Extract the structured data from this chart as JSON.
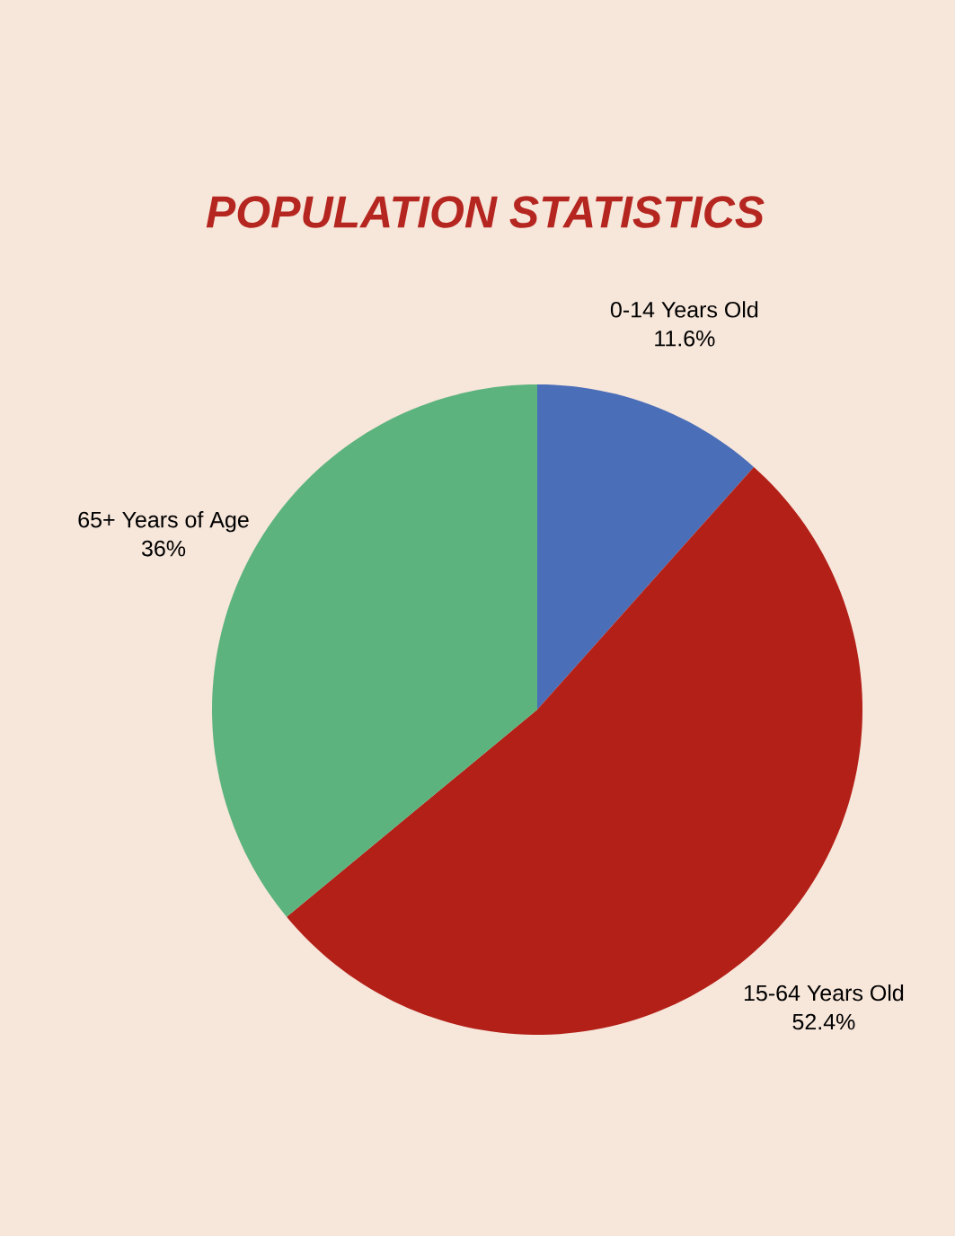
{
  "chart_data": {
    "type": "pie",
    "title": "POPULATION STATISTICS",
    "categories": [
      "0-14 Years Old",
      "15-64 Years Old",
      "65+ Years of Age"
    ],
    "values": [
      11.6,
      52.4,
      36
    ],
    "value_labels": [
      "11.6%",
      "52.4%",
      "36%"
    ],
    "colors": [
      "#4a6eb8",
      "#b32018",
      "#5cb37d"
    ]
  }
}
